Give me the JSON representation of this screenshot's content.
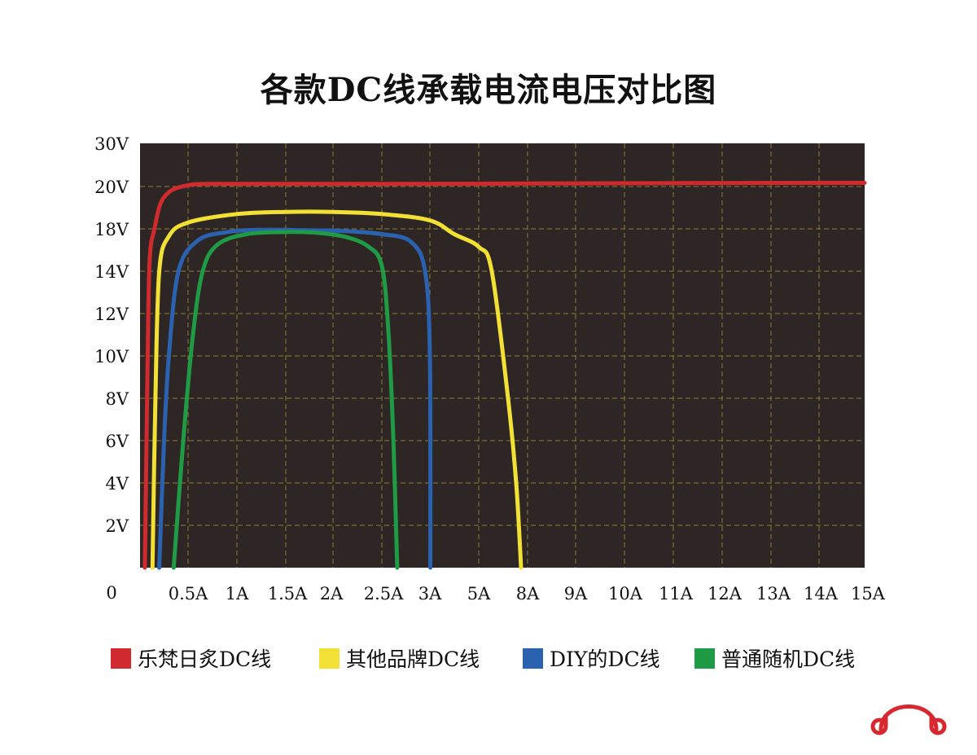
{
  "chart_data": {
    "type": "line",
    "title": "各款DC线承载电流电压对比图",
    "x_origin_label": "0",
    "x_tick_labels": [
      "0.5A",
      "1A",
      "1.5A",
      "2A",
      "2.5A",
      "3A",
      "5A",
      "8A",
      "9A",
      "10A",
      "11A",
      "12A",
      "13A",
      "14A",
      "15A"
    ],
    "y_tick_labels": [
      "2V",
      "4V",
      "6V",
      "8V",
      "10V",
      "12V",
      "14V",
      "18V",
      "20V",
      "30V"
    ],
    "grid": true,
    "legend_position": "bottom",
    "background": "#2e2624",
    "grid_color": "#8a7d3c",
    "series": [
      {
        "name": "乐梵日炙DC线",
        "color": "#d02a2e",
        "points": [
          [
            0.05,
            0
          ],
          [
            0.08,
            10
          ],
          [
            0.1,
            15
          ],
          [
            0.15,
            18
          ],
          [
            0.25,
            19.5
          ],
          [
            0.5,
            20.3
          ],
          [
            1,
            20.6
          ],
          [
            2,
            20.6
          ],
          [
            3,
            20.6
          ],
          [
            5,
            20.65
          ],
          [
            8,
            20.7
          ],
          [
            10,
            20.75
          ],
          [
            12,
            20.8
          ],
          [
            14,
            20.85
          ],
          [
            15,
            20.85
          ]
        ]
      },
      {
        "name": "其他品牌DC线",
        "color": "#f2e034",
        "points": [
          [
            0.13,
            0
          ],
          [
            0.16,
            8
          ],
          [
            0.2,
            14
          ],
          [
            0.3,
            17.3
          ],
          [
            0.5,
            18.3
          ],
          [
            1,
            18.7
          ],
          [
            1.5,
            18.8
          ],
          [
            2,
            18.8
          ],
          [
            2.5,
            18.7
          ],
          [
            3,
            18.4
          ],
          [
            4,
            17.5
          ],
          [
            5,
            16.3
          ],
          [
            5.8,
            14
          ],
          [
            6.8,
            8
          ],
          [
            7.3,
            4
          ],
          [
            7.6,
            0
          ]
        ]
      },
      {
        "name": "DIY的DC线",
        "color": "#2b62b0",
        "points": [
          [
            0.2,
            0
          ],
          [
            0.25,
            6
          ],
          [
            0.3,
            10
          ],
          [
            0.4,
            14
          ],
          [
            0.6,
            16.9
          ],
          [
            0.9,
            17.7
          ],
          [
            1.2,
            17.9
          ],
          [
            1.5,
            17.9
          ],
          [
            1.8,
            17.85
          ],
          [
            2.1,
            17.8
          ],
          [
            2.5,
            17.5
          ],
          [
            2.8,
            16.8
          ],
          [
            2.95,
            14
          ],
          [
            3.0,
            10
          ],
          [
            3.02,
            0
          ]
        ]
      },
      {
        "name": "普通随机DC线",
        "color": "#1f9a45",
        "points": [
          [
            0.35,
            0
          ],
          [
            0.45,
            6
          ],
          [
            0.55,
            11
          ],
          [
            0.65,
            14
          ],
          [
            0.8,
            16.5
          ],
          [
            1.1,
            17.5
          ],
          [
            1.5,
            17.7
          ],
          [
            1.8,
            17.65
          ],
          [
            2.1,
            17.3
          ],
          [
            2.35,
            16.4
          ],
          [
            2.5,
            14.5
          ],
          [
            2.57,
            11
          ],
          [
            2.62,
            6
          ],
          [
            2.66,
            0
          ]
        ]
      }
    ]
  }
}
